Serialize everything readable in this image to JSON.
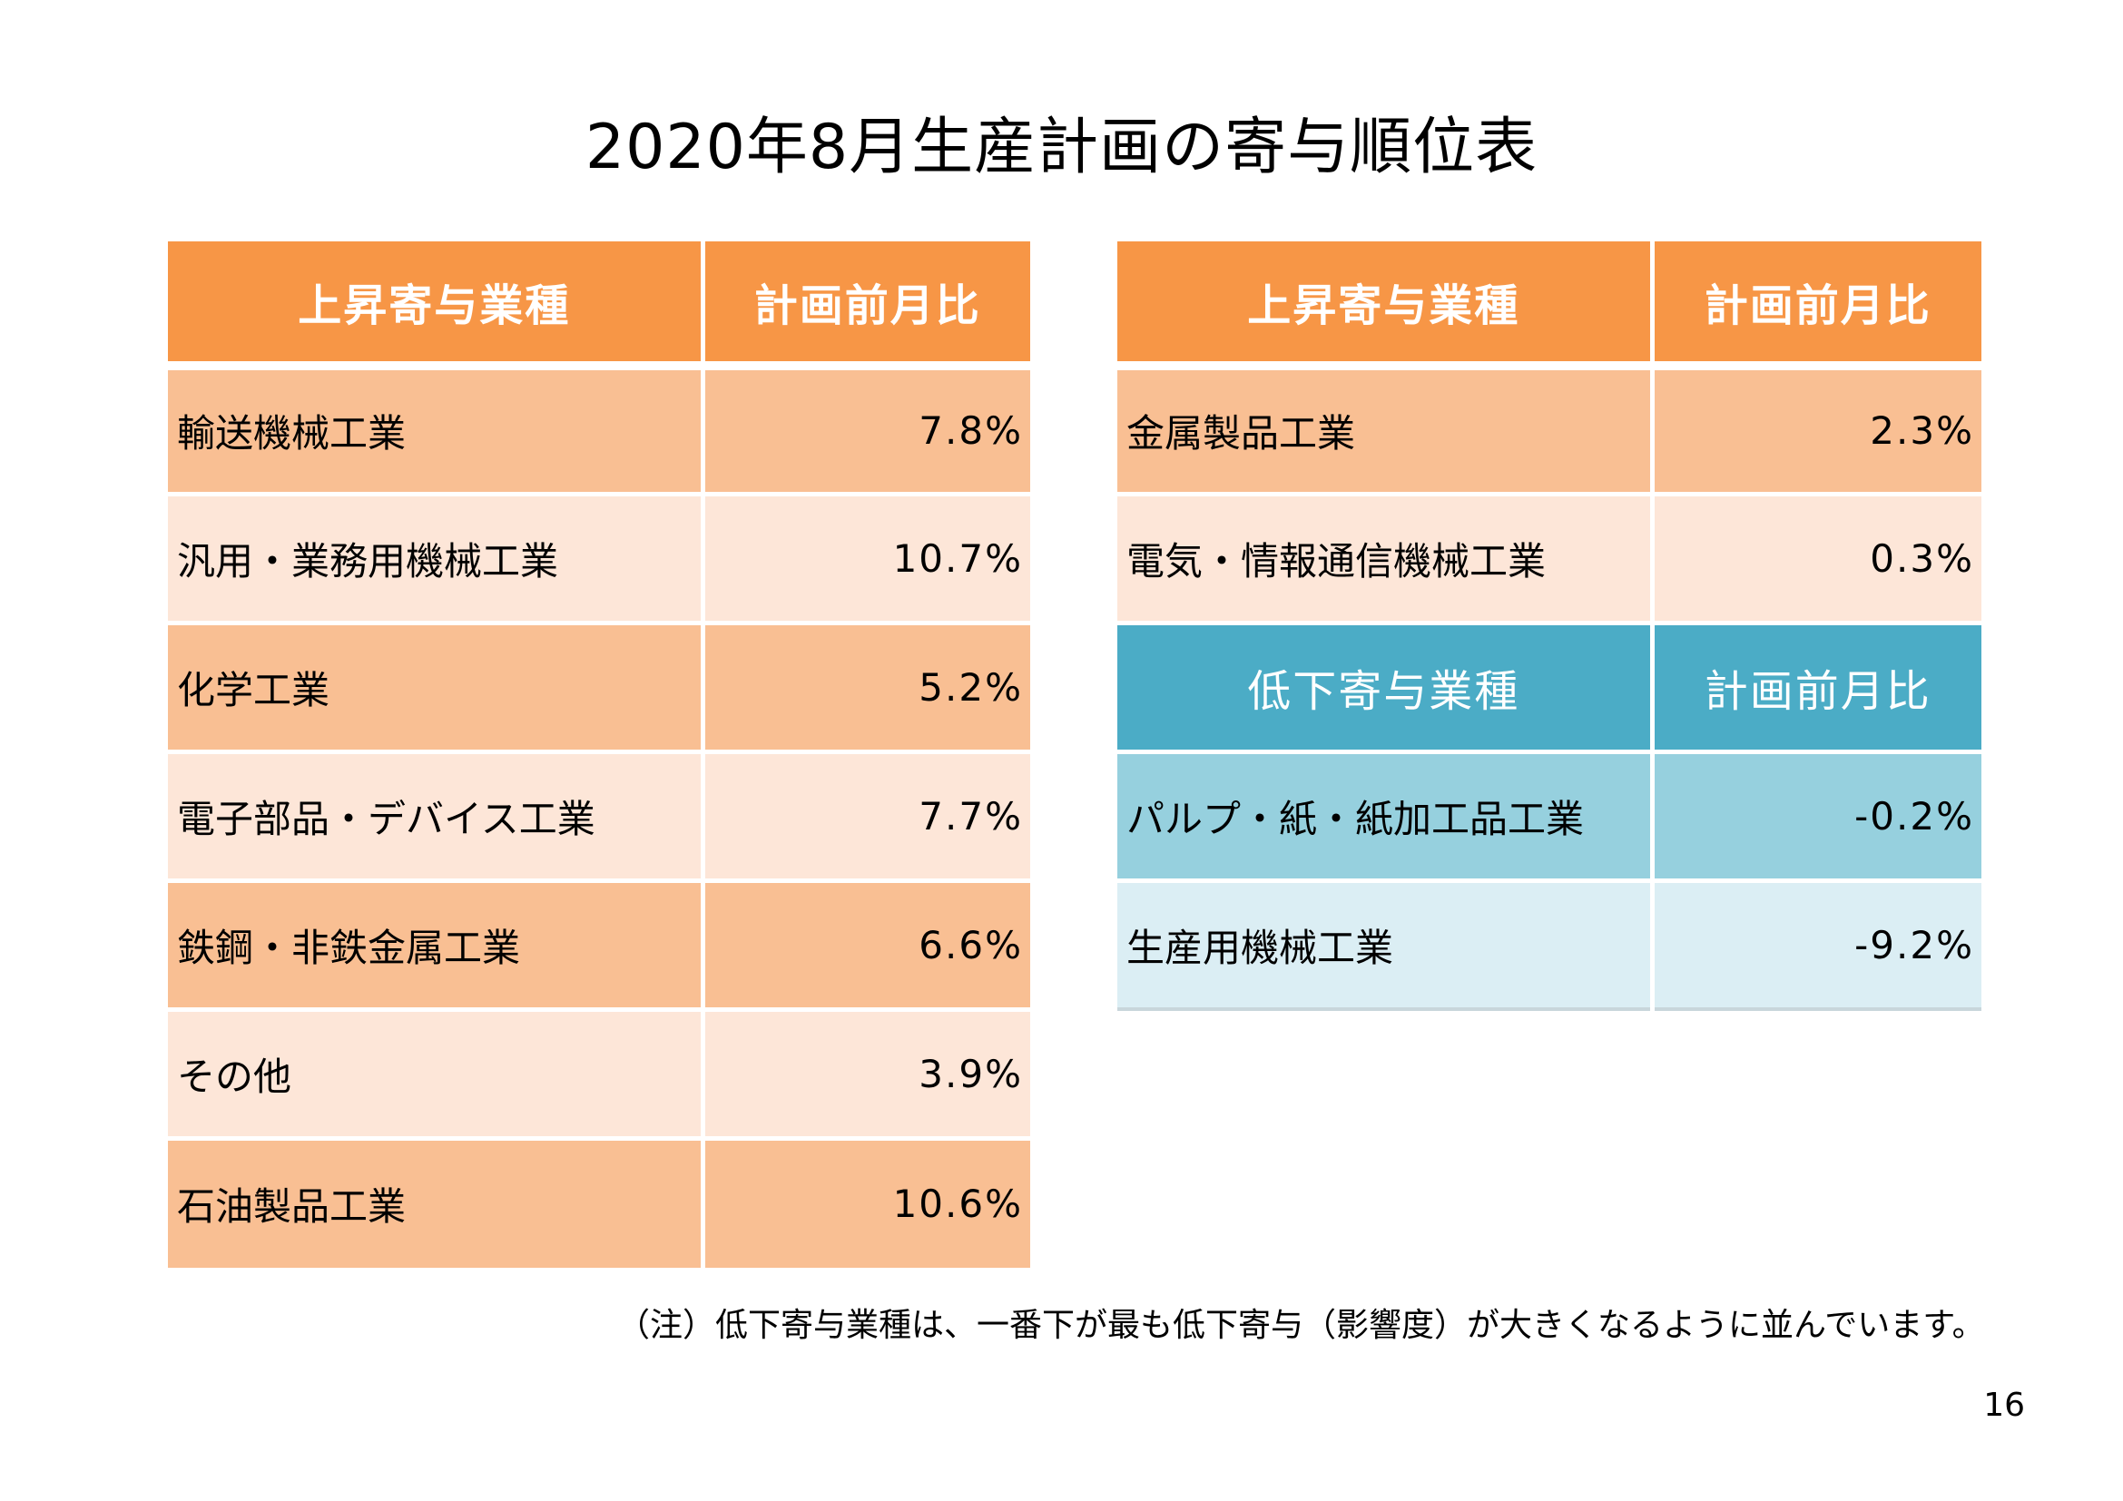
{
  "title": "2020年8月生産計画の寄与順位表",
  "left_table": {
    "header": {
      "industry": "上昇寄与業種",
      "ratio": "計画前月比"
    },
    "rows": [
      {
        "industry": "輸送機械工業",
        "ratio": "7.8%"
      },
      {
        "industry": "汎用・業務用機械工業",
        "ratio": "10.7%"
      },
      {
        "industry": "化学工業",
        "ratio": "5.2%"
      },
      {
        "industry": "電子部品・デバイス工業",
        "ratio": "7.7%"
      },
      {
        "industry": "鉄鋼・非鉄金属工業",
        "ratio": "6.6%"
      },
      {
        "industry": "その他",
        "ratio": "3.9%"
      },
      {
        "industry": "石油製品工業",
        "ratio": "10.6%"
      }
    ]
  },
  "right_table": {
    "rise_header": {
      "industry": "上昇寄与業種",
      "ratio": "計画前月比"
    },
    "rise_rows": [
      {
        "industry": "金属製品工業",
        "ratio": "2.3%"
      },
      {
        "industry": "電気・情報通信機械工業",
        "ratio": "0.3%"
      }
    ],
    "fall_header": {
      "industry": "低下寄与業種",
      "ratio": "計画前月比"
    },
    "fall_rows": [
      {
        "industry": "パルプ・紙・紙加工品工業",
        "ratio": "-0.2%"
      },
      {
        "industry": "生産用機械工業",
        "ratio": "-9.2%"
      }
    ]
  },
  "note": "（注）低下寄与業種は、一番下が最も低下寄与（影響度）が大きくなるように並んでいます。",
  "page_number": "16",
  "colors": {
    "orange_header": "#F79646",
    "orange_dark": "#F9BF93",
    "orange_light": "#FDE6D8",
    "blue_header": "#4BACC6",
    "blue_dark": "#96D0DE",
    "blue_light": "#DBEEF4"
  }
}
